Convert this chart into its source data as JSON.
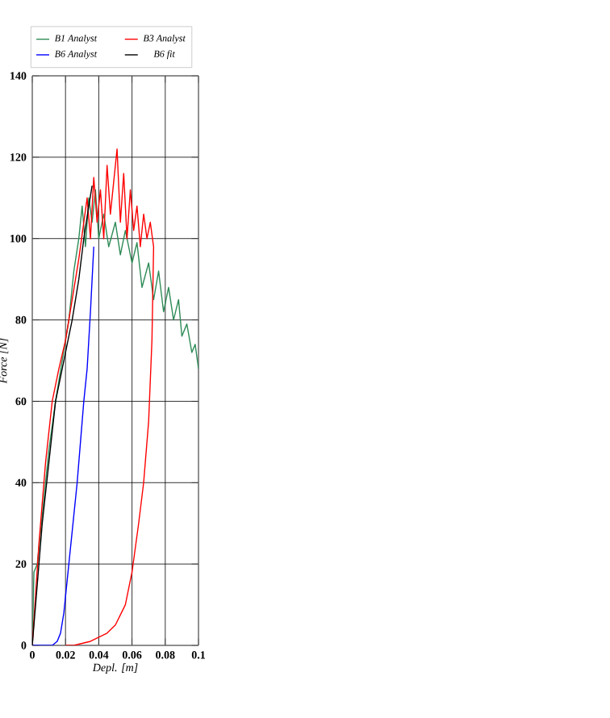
{
  "chart_data": {
    "type": "line",
    "xlabel": "Depl. [m]",
    "ylabel": "Force [N]",
    "xlim": [
      0,
      0.1
    ],
    "ylim": [
      0,
      140
    ],
    "xticks": [
      0,
      0.02,
      0.04,
      0.06,
      0.08,
      0.1
    ],
    "yticks": [
      0,
      20,
      40,
      60,
      80,
      100,
      120,
      140
    ],
    "grid": true,
    "legend": "top",
    "series": [
      {
        "name": "B1 Analyst",
        "color": "#2e8b57",
        "x": [
          0,
          0.001,
          0.003,
          0.006,
          0.01,
          0.014,
          0.018,
          0.022,
          0.025,
          0.028,
          0.03,
          0.032,
          0.034,
          0.036,
          0.038,
          0.04,
          0.043,
          0.046,
          0.05,
          0.053,
          0.056,
          0.06,
          0.063,
          0.066,
          0.07,
          0.073,
          0.076,
          0.079,
          0.082,
          0.085,
          0.088,
          0.09,
          0.093,
          0.096,
          0.098,
          0.1
        ],
        "values": [
          0,
          18,
          20,
          32,
          48,
          60,
          70,
          80,
          92,
          100,
          108,
          98,
          110,
          104,
          112,
          100,
          106,
          98,
          104,
          96,
          102,
          94,
          99,
          88,
          94,
          85,
          92,
          82,
          88,
          80,
          85,
          76,
          79,
          72,
          74,
          68
        ]
      },
      {
        "name": "B3 Analyst",
        "color": "#ff0000",
        "x": [
          0,
          0.004,
          0.008,
          0.012,
          0.016,
          0.02,
          0.024,
          0.028,
          0.031,
          0.033,
          0.035,
          0.037,
          0.039,
          0.041,
          0.043,
          0.045,
          0.047,
          0.049,
          0.051,
          0.053,
          0.055,
          0.057,
          0.059,
          0.061,
          0.063,
          0.065,
          0.067,
          0.069,
          0.071,
          0.073,
          0.072,
          0.07,
          0.067,
          0.064,
          0.06,
          0.056,
          0.05,
          0.045,
          0.04,
          0.035,
          0.03,
          0.025,
          0.02
        ],
        "values": [
          0,
          25,
          45,
          60,
          68,
          75,
          85,
          95,
          104,
          110,
          100,
          115,
          104,
          112,
          100,
          118,
          106,
          114,
          122,
          104,
          116,
          100,
          112,
          102,
          108,
          98,
          106,
          100,
          104,
          98,
          75,
          55,
          40,
          30,
          18,
          10,
          5,
          3,
          2,
          1,
          0.5,
          0,
          0
        ]
      },
      {
        "name": "B6 Analyst",
        "color": "#0000ff",
        "x": [
          0,
          0.008,
          0.012,
          0.015,
          0.017,
          0.019,
          0.022,
          0.025,
          0.027,
          0.029,
          0.031,
          0.033,
          0.034,
          0.035,
          0.036,
          0.037
        ],
        "values": [
          0,
          0,
          0,
          1,
          3,
          8,
          20,
          32,
          40,
          50,
          60,
          68,
          75,
          82,
          90,
          98
        ]
      },
      {
        "name": "B6 fit",
        "color": "#000000",
        "x": [
          0,
          0.002,
          0.006,
          0.01,
          0.014,
          0.018,
          0.02,
          0.024,
          0.028,
          0.031,
          0.034,
          0.036
        ],
        "values": [
          0,
          10,
          30,
          45,
          60,
          68,
          72,
          80,
          90,
          100,
          108,
          113
        ]
      }
    ]
  }
}
